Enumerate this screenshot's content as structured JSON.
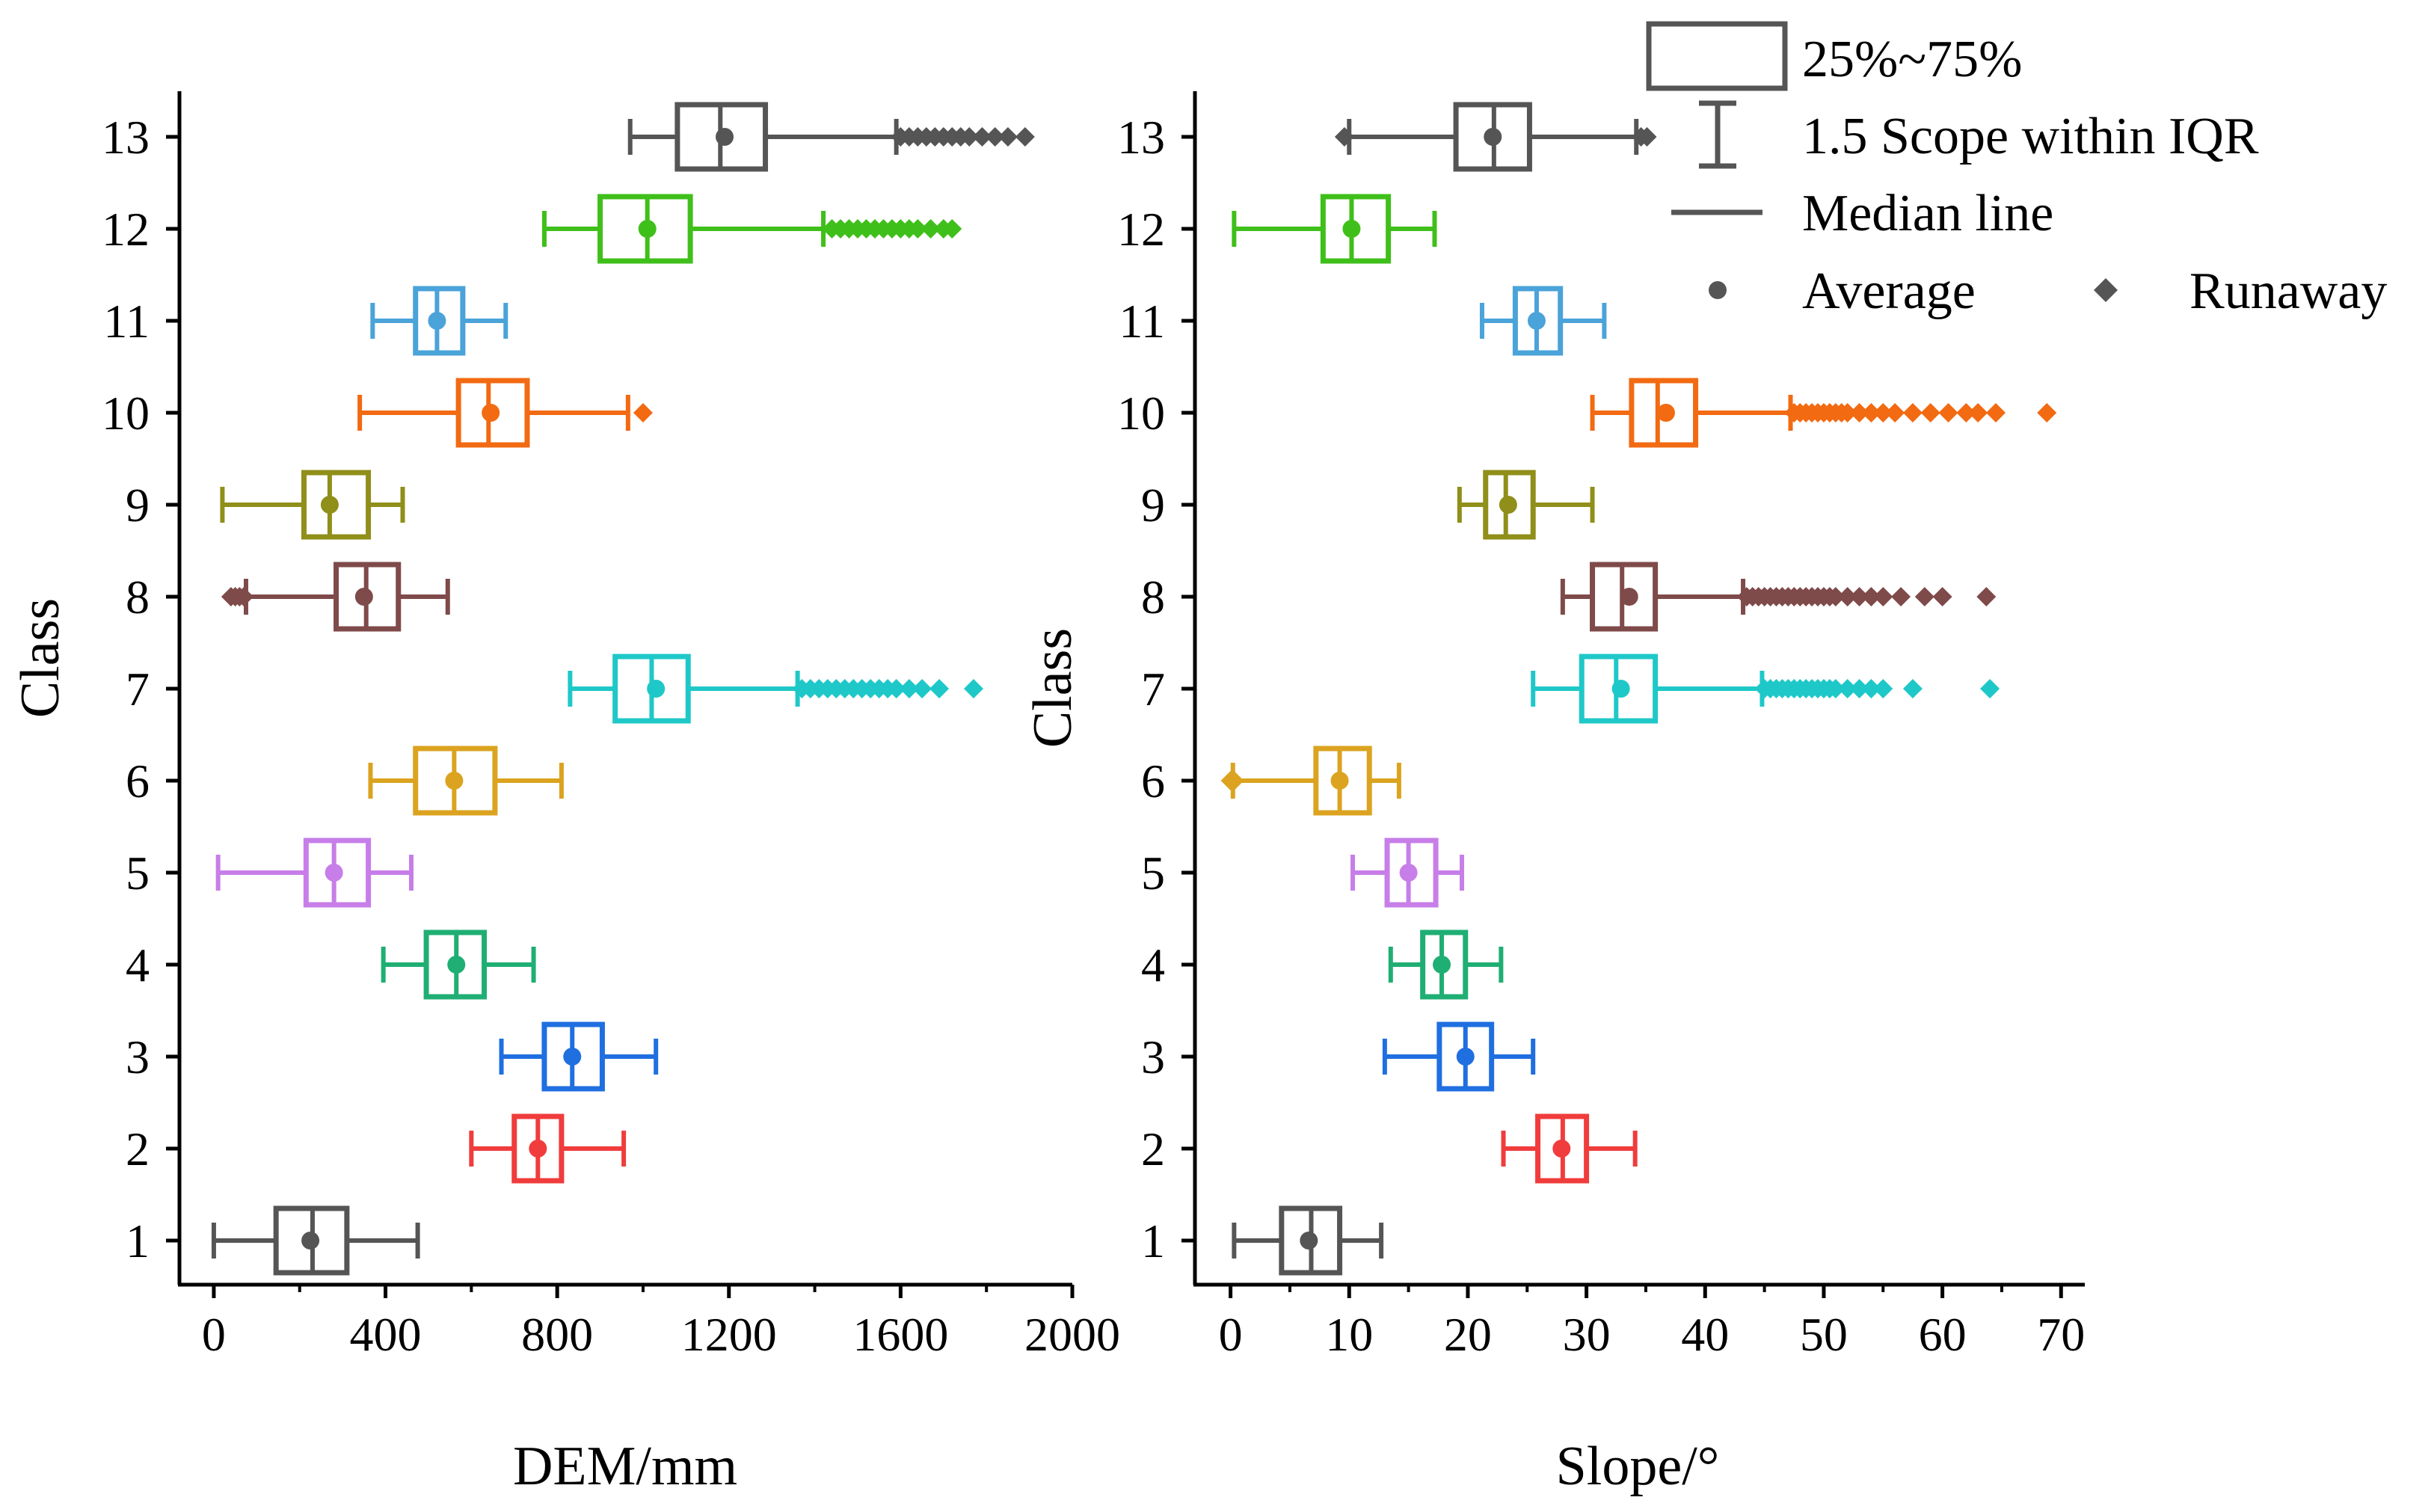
{
  "chart_data": [
    {
      "type": "boxplot",
      "orientation": "horizontal",
      "xlabel": "DEM/mm",
      "ylabel": "Class",
      "xlim": [
        -80,
        2000
      ],
      "xticks": [
        "0",
        "400",
        "800",
        "1200",
        "1600",
        "2000"
      ],
      "xtick_values": [
        0,
        400,
        800,
        1200,
        1600,
        2000
      ],
      "categories": [
        "1",
        "2",
        "3",
        "4",
        "5",
        "6",
        "7",
        "8",
        "9",
        "10",
        "11",
        "12",
        "13"
      ],
      "boxes": [
        {
          "class": "1",
          "color": "#555555",
          "whisker_low": 0,
          "q1": 145,
          "median": 230,
          "q3": 310,
          "whisker_high": 475,
          "mean": 225,
          "outliers": []
        },
        {
          "class": "2",
          "color": "#f03c3c",
          "whisker_low": 600,
          "q1": 700,
          "median": 755,
          "q3": 810,
          "whisker_high": 955,
          "mean": 755,
          "outliers": []
        },
        {
          "class": "3",
          "color": "#1f6fe0",
          "whisker_low": 670,
          "q1": 770,
          "median": 835,
          "q3": 905,
          "whisker_high": 1030,
          "mean": 835,
          "outliers": []
        },
        {
          "class": "4",
          "color": "#1fae73",
          "whisker_low": 395,
          "q1": 495,
          "median": 565,
          "q3": 630,
          "whisker_high": 745,
          "mean": 565,
          "outliers": []
        },
        {
          "class": "5",
          "color": "#c77ee8",
          "whisker_low": 10,
          "q1": 215,
          "median": 280,
          "q3": 360,
          "whisker_high": 460,
          "mean": 280,
          "outliers": []
        },
        {
          "class": "6",
          "color": "#dba31f",
          "whisker_low": 365,
          "q1": 470,
          "median": 560,
          "q3": 655,
          "whisker_high": 810,
          "mean": 560,
          "outliers": []
        },
        {
          "class": "7",
          "color": "#1fc8c8",
          "whisker_low": 830,
          "q1": 935,
          "median": 1020,
          "q3": 1105,
          "whisker_high": 1360,
          "mean": 1030,
          "outliers": [
            1370,
            1390,
            1410,
            1430,
            1450,
            1470,
            1490,
            1510,
            1530,
            1550,
            1570,
            1590,
            1620,
            1650,
            1690,
            1770
          ]
        },
        {
          "class": "8",
          "color": "#7f4a4a",
          "whisker_low": 75,
          "q1": 285,
          "median": 355,
          "q3": 430,
          "whisker_high": 545,
          "mean": 350,
          "outliers": [
            40,
            50,
            60,
            70
          ]
        },
        {
          "class": "9",
          "color": "#8f8f1a",
          "whisker_low": 20,
          "q1": 210,
          "median": 270,
          "q3": 360,
          "whisker_high": 440,
          "mean": 270,
          "outliers": []
        },
        {
          "class": "10",
          "color": "#f26a12",
          "whisker_low": 340,
          "q1": 570,
          "median": 640,
          "q3": 730,
          "whisker_high": 965,
          "mean": 645,
          "outliers": [
            1000
          ]
        },
        {
          "class": "11",
          "color": "#4aa3d9",
          "whisker_low": 370,
          "q1": 470,
          "median": 520,
          "q3": 580,
          "whisker_high": 680,
          "mean": 520,
          "outliers": []
        },
        {
          "class": "12",
          "color": "#3fbf1a",
          "whisker_low": 770,
          "q1": 900,
          "median": 1010,
          "q3": 1110,
          "whisker_high": 1420,
          "mean": 1010,
          "outliers": [
            1440,
            1460,
            1480,
            1500,
            1520,
            1540,
            1560,
            1580,
            1600,
            1620,
            1640,
            1670,
            1700,
            1720
          ]
        },
        {
          "class": "13",
          "color": "#555555",
          "whisker_low": 970,
          "q1": 1080,
          "median": 1180,
          "q3": 1285,
          "whisker_high": 1590,
          "mean": 1190,
          "outliers": [
            1600,
            1620,
            1640,
            1660,
            1680,
            1700,
            1720,
            1740,
            1760,
            1790,
            1820,
            1850,
            1890
          ]
        }
      ]
    },
    {
      "type": "boxplot",
      "orientation": "horizontal",
      "xlabel": "Slope/°",
      "ylabel": "Class",
      "xlim": [
        -3,
        72
      ],
      "xticks": [
        "0",
        "10",
        "20",
        "30",
        "40",
        "50",
        "60",
        "70"
      ],
      "xtick_values": [
        0,
        10,
        20,
        30,
        40,
        50,
        60,
        70
      ],
      "categories": [
        "1",
        "2",
        "3",
        "4",
        "5",
        "6",
        "7",
        "8",
        "9",
        "10",
        "11",
        "12",
        "13"
      ],
      "boxes": [
        {
          "class": "1",
          "color": "#555555",
          "whisker_low": 0.3,
          "q1": 4.3,
          "median": 6.8,
          "q3": 9.2,
          "whisker_high": 12.7,
          "mean": 6.6,
          "outliers": []
        },
        {
          "class": "2",
          "color": "#f03c3c",
          "whisker_low": 23,
          "q1": 25.9,
          "median": 28,
          "q3": 30,
          "whisker_high": 34.1,
          "mean": 27.9,
          "outliers": []
        },
        {
          "class": "3",
          "color": "#1f6fe0",
          "whisker_low": 13,
          "q1": 17.6,
          "median": 19.8,
          "q3": 22,
          "whisker_high": 25.5,
          "mean": 19.8,
          "outliers": []
        },
        {
          "class": "4",
          "color": "#1fae73",
          "whisker_low": 13.5,
          "q1": 16.2,
          "median": 17.8,
          "q3": 19.8,
          "whisker_high": 22.8,
          "mean": 17.8,
          "outliers": []
        },
        {
          "class": "5",
          "color": "#c77ee8",
          "whisker_low": 10.3,
          "q1": 13.2,
          "median": 15,
          "q3": 17.3,
          "whisker_high": 19.5,
          "mean": 15,
          "outliers": []
        },
        {
          "class": "6",
          "color": "#dba31f",
          "whisker_low": 0.2,
          "q1": 7.2,
          "median": 9.2,
          "q3": 11.7,
          "whisker_high": 14.2,
          "mean": 9.2,
          "outliers": [
            0.0,
            0.3
          ]
        },
        {
          "class": "7",
          "color": "#1fc8c8",
          "whisker_low": 25.5,
          "q1": 29.6,
          "median": 32.5,
          "q3": 35.8,
          "whisker_high": 44.8,
          "mean": 32.9,
          "outliers": [
            45,
            45.5,
            46,
            46.5,
            47,
            47.5,
            48,
            48.5,
            49,
            49.5,
            50,
            50.5,
            51,
            52,
            53,
            54,
            55,
            57.5,
            64
          ]
        },
        {
          "class": "8",
          "color": "#7f4a4a",
          "whisker_low": 28,
          "q1": 30.5,
          "median": 33,
          "q3": 35.8,
          "whisker_high": 43.2,
          "mean": 33.6,
          "outliers": [
            43.5,
            44,
            44.5,
            45,
            45.5,
            46,
            46.5,
            47,
            47.5,
            48,
            48.5,
            49,
            49.5,
            50,
            50.5,
            51,
            52,
            53,
            54,
            55,
            56.5,
            58.5,
            60,
            63.7
          ]
        },
        {
          "class": "9",
          "color": "#8f8f1a",
          "whisker_low": 19.3,
          "q1": 21.5,
          "median": 23.2,
          "q3": 25.5,
          "whisker_high": 30.5,
          "mean": 23.4,
          "outliers": []
        },
        {
          "class": "10",
          "color": "#f26a12",
          "whisker_low": 30.5,
          "q1": 33.8,
          "median": 36,
          "q3": 39.2,
          "whisker_high": 47.2,
          "mean": 36.7,
          "outliers": [
            47.5,
            48,
            48.5,
            49,
            49.5,
            50,
            50.5,
            51,
            51.5,
            52,
            53,
            54,
            55,
            56,
            57.5,
            59,
            60.5,
            62,
            63,
            64.5,
            68.8
          ]
        },
        {
          "class": "11",
          "color": "#4aa3d9",
          "whisker_low": 21.2,
          "q1": 24,
          "median": 25.8,
          "q3": 27.8,
          "whisker_high": 31.5,
          "mean": 25.8,
          "outliers": []
        },
        {
          "class": "12",
          "color": "#3fbf1a",
          "whisker_low": 0.3,
          "q1": 7.8,
          "median": 10.2,
          "q3": 13.3,
          "whisker_high": 17.2,
          "mean": 10.2,
          "outliers": []
        },
        {
          "class": "13",
          "color": "#555555",
          "whisker_low": 10,
          "q1": 19,
          "median": 22.2,
          "q3": 25.2,
          "whisker_high": 34.2,
          "mean": 22.1,
          "outliers": [
            9.6,
            34.6,
            35.1
          ]
        }
      ]
    }
  ],
  "legend": {
    "box_label": "25%~75%",
    "whisker_label": "1.5 Scope within IQR",
    "median_label": "Median line",
    "average_label": "Average",
    "outlier_label": "Runaway",
    "marker_color": "#555555"
  }
}
